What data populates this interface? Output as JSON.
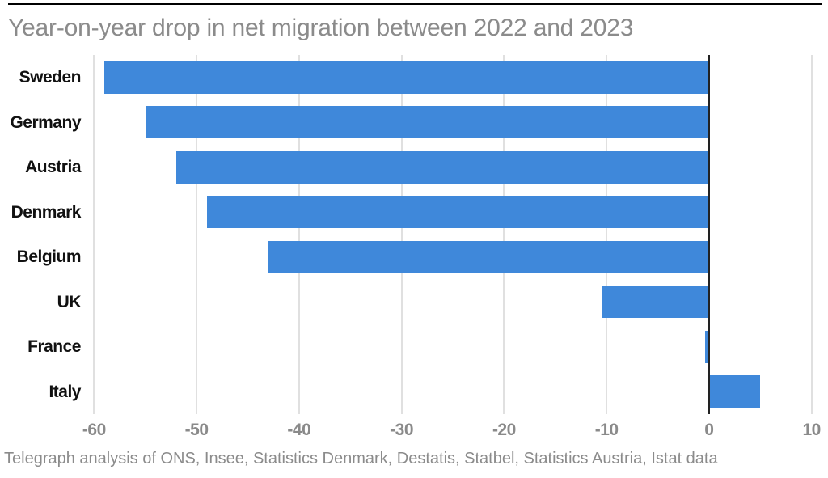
{
  "chart_data": {
    "type": "bar",
    "orientation": "horizontal",
    "title": "Year-on-year drop in net migration between 2022 and 2023",
    "categories": [
      "Sweden",
      "Germany",
      "Austria",
      "Denmark",
      "Belgium",
      "UK",
      "France",
      "Italy"
    ],
    "values": [
      -59,
      -55,
      -52,
      -49,
      -43,
      -10.4,
      -0.4,
      5
    ],
    "xlabel": "",
    "ylabel": "",
    "xlim": [
      -60.5,
      10.5
    ],
    "xticks": [
      -60,
      -50,
      -40,
      -30,
      -20,
      -10,
      0,
      10
    ],
    "grid": true,
    "legend": false,
    "source": "Telegraph analysis of ONS, Insee, Statistics Denmark, Destatis, Statbel, Statistics Austria, Istat data",
    "colors": {
      "background": "#ffffff",
      "bar": "#3f88da",
      "grid": "#e0e0e0",
      "zero_line": "#222222",
      "title": "#8b8b8b",
      "tick_label": "#8a8a8a",
      "category_label": "#111111",
      "source": "#8b8b8b",
      "top_rule": "#000000"
    }
  }
}
